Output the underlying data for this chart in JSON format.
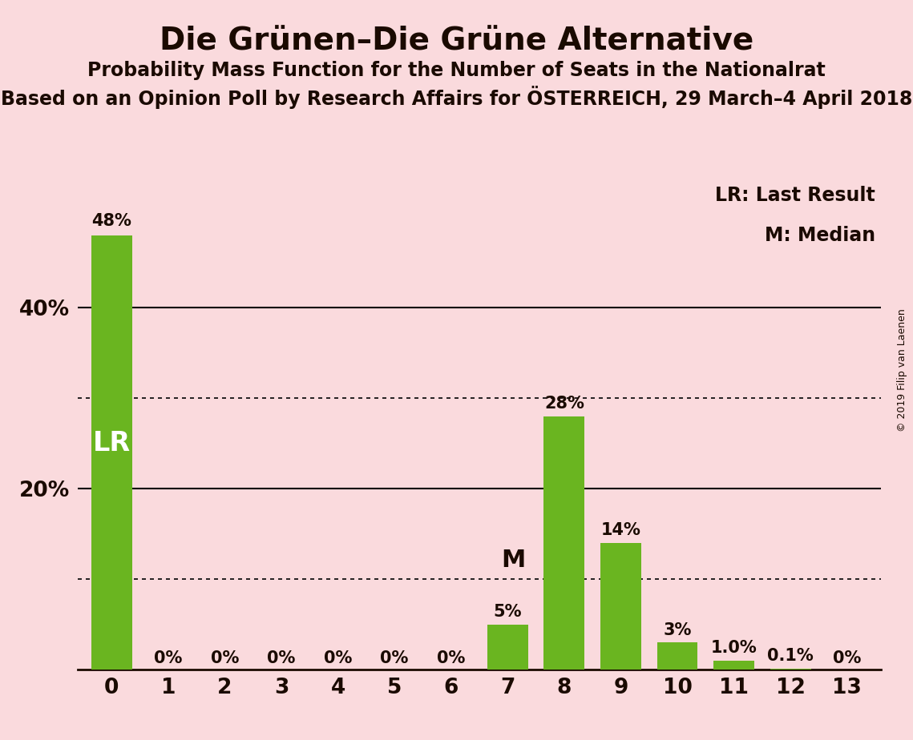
{
  "title": "Die Grünen–Die Grüne Alternative",
  "subtitle1": "Probability Mass Function for the Number of Seats in the Nationalrat",
  "subtitle2": "Based on an Opinion Poll by Research Affairs for ÖSTERREICH, 29 March–4 April 2018",
  "copyright": "© 2019 Filip van Laenen",
  "categories": [
    0,
    1,
    2,
    3,
    4,
    5,
    6,
    7,
    8,
    9,
    10,
    11,
    12,
    13
  ],
  "values": [
    48,
    0,
    0,
    0,
    0,
    0,
    0,
    5,
    28,
    14,
    3,
    1.0,
    0.1,
    0
  ],
  "labels": [
    "48%",
    "0%",
    "0%",
    "0%",
    "0%",
    "0%",
    "0%",
    "5%",
    "28%",
    "14%",
    "3%",
    "1.0%",
    "0.1%",
    "0%"
  ],
  "bar_color": "#6ab520",
  "background_color": "#fadadd",
  "text_color": "#1a0a00",
  "lr_bar": 0,
  "median_bar": 7,
  "lr_label": "LR",
  "median_label": "M",
  "legend_lr": "LR: Last Result",
  "legend_m": "M: Median",
  "yticks": [
    20,
    40
  ],
  "ytick_labels": [
    "20%",
    "40%"
  ],
  "solid_gridlines": [
    20,
    40
  ],
  "dotted_gridlines": [
    10,
    30
  ],
  "ylim": [
    0,
    56
  ],
  "title_fontsize": 28,
  "subtitle1_fontsize": 17,
  "subtitle2_fontsize": 17,
  "bar_label_fontsize": 15,
  "axis_label_fontsize": 19,
  "in_bar_label_fontsize": 24,
  "legend_fontsize": 17
}
